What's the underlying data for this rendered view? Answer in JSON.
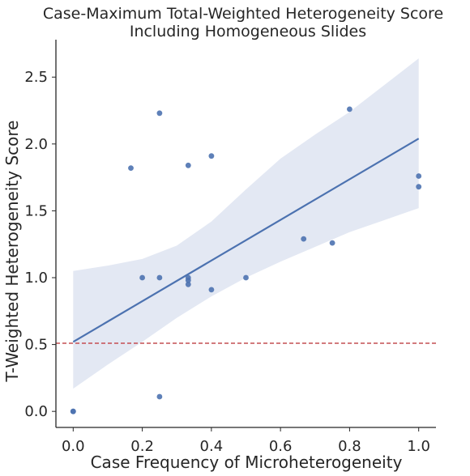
{
  "chart_data": {
    "type": "scatter",
    "title_lines": [
      "Case-Maximum Total-Weighted Heterogeneity Score",
      "Including Homogeneous Slides"
    ],
    "xlabel": "Case Frequency of Microheterogeneity",
    "ylabel": "T-Weighted Heterogeneity Score",
    "xlim": [
      -0.05,
      1.05
    ],
    "ylim": [
      -0.12,
      2.78
    ],
    "x_ticks": [
      0.0,
      0.2,
      0.4,
      0.6,
      0.8,
      1.0
    ],
    "x_tick_labels": [
      "0.0",
      "0.2",
      "0.4",
      "0.6",
      "0.8",
      "1.0"
    ],
    "y_ticks": [
      0.0,
      0.5,
      1.0,
      1.5,
      2.0,
      2.5
    ],
    "y_tick_labels": [
      "0.0",
      "0.5",
      "1.0",
      "1.5",
      "2.0",
      "2.5"
    ],
    "points": [
      {
        "x": 0.0,
        "y": 0.0
      },
      {
        "x": 0.0,
        "y": 0.0
      },
      {
        "x": 0.167,
        "y": 1.82
      },
      {
        "x": 0.2,
        "y": 1.0
      },
      {
        "x": 0.25,
        "y": 2.23
      },
      {
        "x": 0.25,
        "y": 1.0
      },
      {
        "x": 0.25,
        "y": 0.11
      },
      {
        "x": 0.333,
        "y": 1.84
      },
      {
        "x": 0.333,
        "y": 1.0
      },
      {
        "x": 0.333,
        "y": 0.98
      },
      {
        "x": 0.333,
        "y": 0.95
      },
      {
        "x": 0.4,
        "y": 1.91
      },
      {
        "x": 0.4,
        "y": 0.91
      },
      {
        "x": 0.5,
        "y": 1.0
      },
      {
        "x": 0.667,
        "y": 1.29
      },
      {
        "x": 0.75,
        "y": 1.26
      },
      {
        "x": 0.8,
        "y": 2.26
      },
      {
        "x": 1.0,
        "y": 1.76
      },
      {
        "x": 1.0,
        "y": 1.68
      }
    ],
    "regression": {
      "x": [
        0.0,
        1.0
      ],
      "y": [
        0.52,
        2.04
      ],
      "ci_x": [
        0.0,
        0.1,
        0.2,
        0.3,
        0.4,
        0.5,
        0.6,
        0.7,
        0.8,
        0.9,
        1.0
      ],
      "ci_upper": [
        1.05,
        1.09,
        1.14,
        1.24,
        1.42,
        1.66,
        1.89,
        2.07,
        2.24,
        2.44,
        2.64
      ],
      "ci_lower": [
        0.17,
        0.35,
        0.52,
        0.7,
        0.86,
        1.0,
        1.12,
        1.23,
        1.34,
        1.43,
        1.52
      ]
    },
    "reference_line": {
      "y": 0.51,
      "style": "dashed"
    },
    "colors": {
      "point": "#4c72b0",
      "line": "#4c72b0",
      "band": "#e3e8f3",
      "reference": "#c44e52"
    },
    "grid": false
  }
}
